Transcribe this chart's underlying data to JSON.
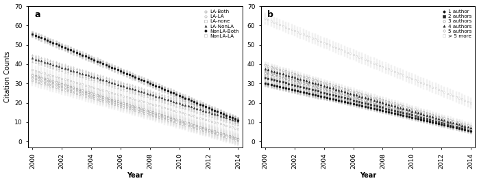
{
  "panel_a": {
    "title": "a",
    "series": [
      {
        "label": "LA-Both",
        "y2000": 34.5,
        "y2014": 1.5,
        "ci": 2.5,
        "color": "#888888",
        "marker": "o",
        "filled": false,
        "lw": 0.6
      },
      {
        "label": "LA-LA",
        "y2000": 33.0,
        "y2014": 1.0,
        "ci": 2.5,
        "color": "#999999",
        "marker": "o",
        "filled": false,
        "lw": 0.6
      },
      {
        "label": "LA-none",
        "y2000": 31.5,
        "y2014": 0.5,
        "ci": 2.5,
        "color": "#aaaaaa",
        "marker": "s",
        "filled": false,
        "lw": 0.6
      },
      {
        "label": "LA-NonLA",
        "y2000": 43.0,
        "y2014": 10.5,
        "ci": 2.0,
        "color": "#444444",
        "marker": "^",
        "filled": true,
        "lw": 0.6
      },
      {
        "label": "NonLA-Both",
        "y2000": 55.5,
        "y2014": 11.0,
        "ci": 1.5,
        "color": "#111111",
        "marker": "o",
        "filled": true,
        "lw": 0.6
      },
      {
        "label": "NonLA-LA",
        "y2000": 37.0,
        "y2014": 6.5,
        "ci": 2.5,
        "color": "#bbbbbb",
        "marker": "s",
        "filled": false,
        "lw": 0.6
      }
    ],
    "xlabel": "Year",
    "ylabel": "Citation Counts",
    "ylim": [
      -3,
      70
    ],
    "yticks": [
      0,
      10,
      20,
      30,
      40,
      50,
      60,
      70
    ],
    "xticks": [
      2000,
      2002,
      2004,
      2006,
      2008,
      2010,
      2012,
      2014
    ]
  },
  "panel_b": {
    "title": "b",
    "series": [
      {
        "label": "1 author",
        "y2000": 30.0,
        "y2014": 5.5,
        "ci": 1.2,
        "color": "#111111",
        "marker": "o",
        "filled": true,
        "lw": 0.6
      },
      {
        "label": "2 authors",
        "y2000": 33.0,
        "y2014": 6.0,
        "ci": 1.2,
        "color": "#222222",
        "marker": "s",
        "filled": true,
        "lw": 0.6
      },
      {
        "label": "3 authors",
        "y2000": 35.5,
        "y2014": 6.5,
        "ci": 1.2,
        "color": "#777777",
        "marker": "o",
        "filled": false,
        "lw": 0.6
      },
      {
        "label": "4 authors",
        "y2000": 37.5,
        "y2014": 7.0,
        "ci": 1.2,
        "color": "#333333",
        "marker": "^",
        "filled": true,
        "lw": 0.6
      },
      {
        "label": "5 authors",
        "y2000": 39.5,
        "y2014": 8.0,
        "ci": 1.5,
        "color": "#999999",
        "marker": "o",
        "filled": false,
        "lw": 0.6
      },
      {
        "label": "> 5 more",
        "y2000": 63.5,
        "y2014": 20.0,
        "ci": 2.5,
        "color": "#cccccc",
        "marker": "s",
        "filled": false,
        "lw": 0.6
      }
    ],
    "xlabel": "Year",
    "ylabel": "",
    "ylim": [
      -3,
      70
    ],
    "yticks": [
      0,
      10,
      20,
      30,
      40,
      50,
      60,
      70
    ],
    "xticks": [
      2000,
      2002,
      2004,
      2006,
      2008,
      2010,
      2012,
      2014
    ]
  },
  "n_ci_lines": 8,
  "marker_step": 0.2,
  "marker_size": 2.0
}
